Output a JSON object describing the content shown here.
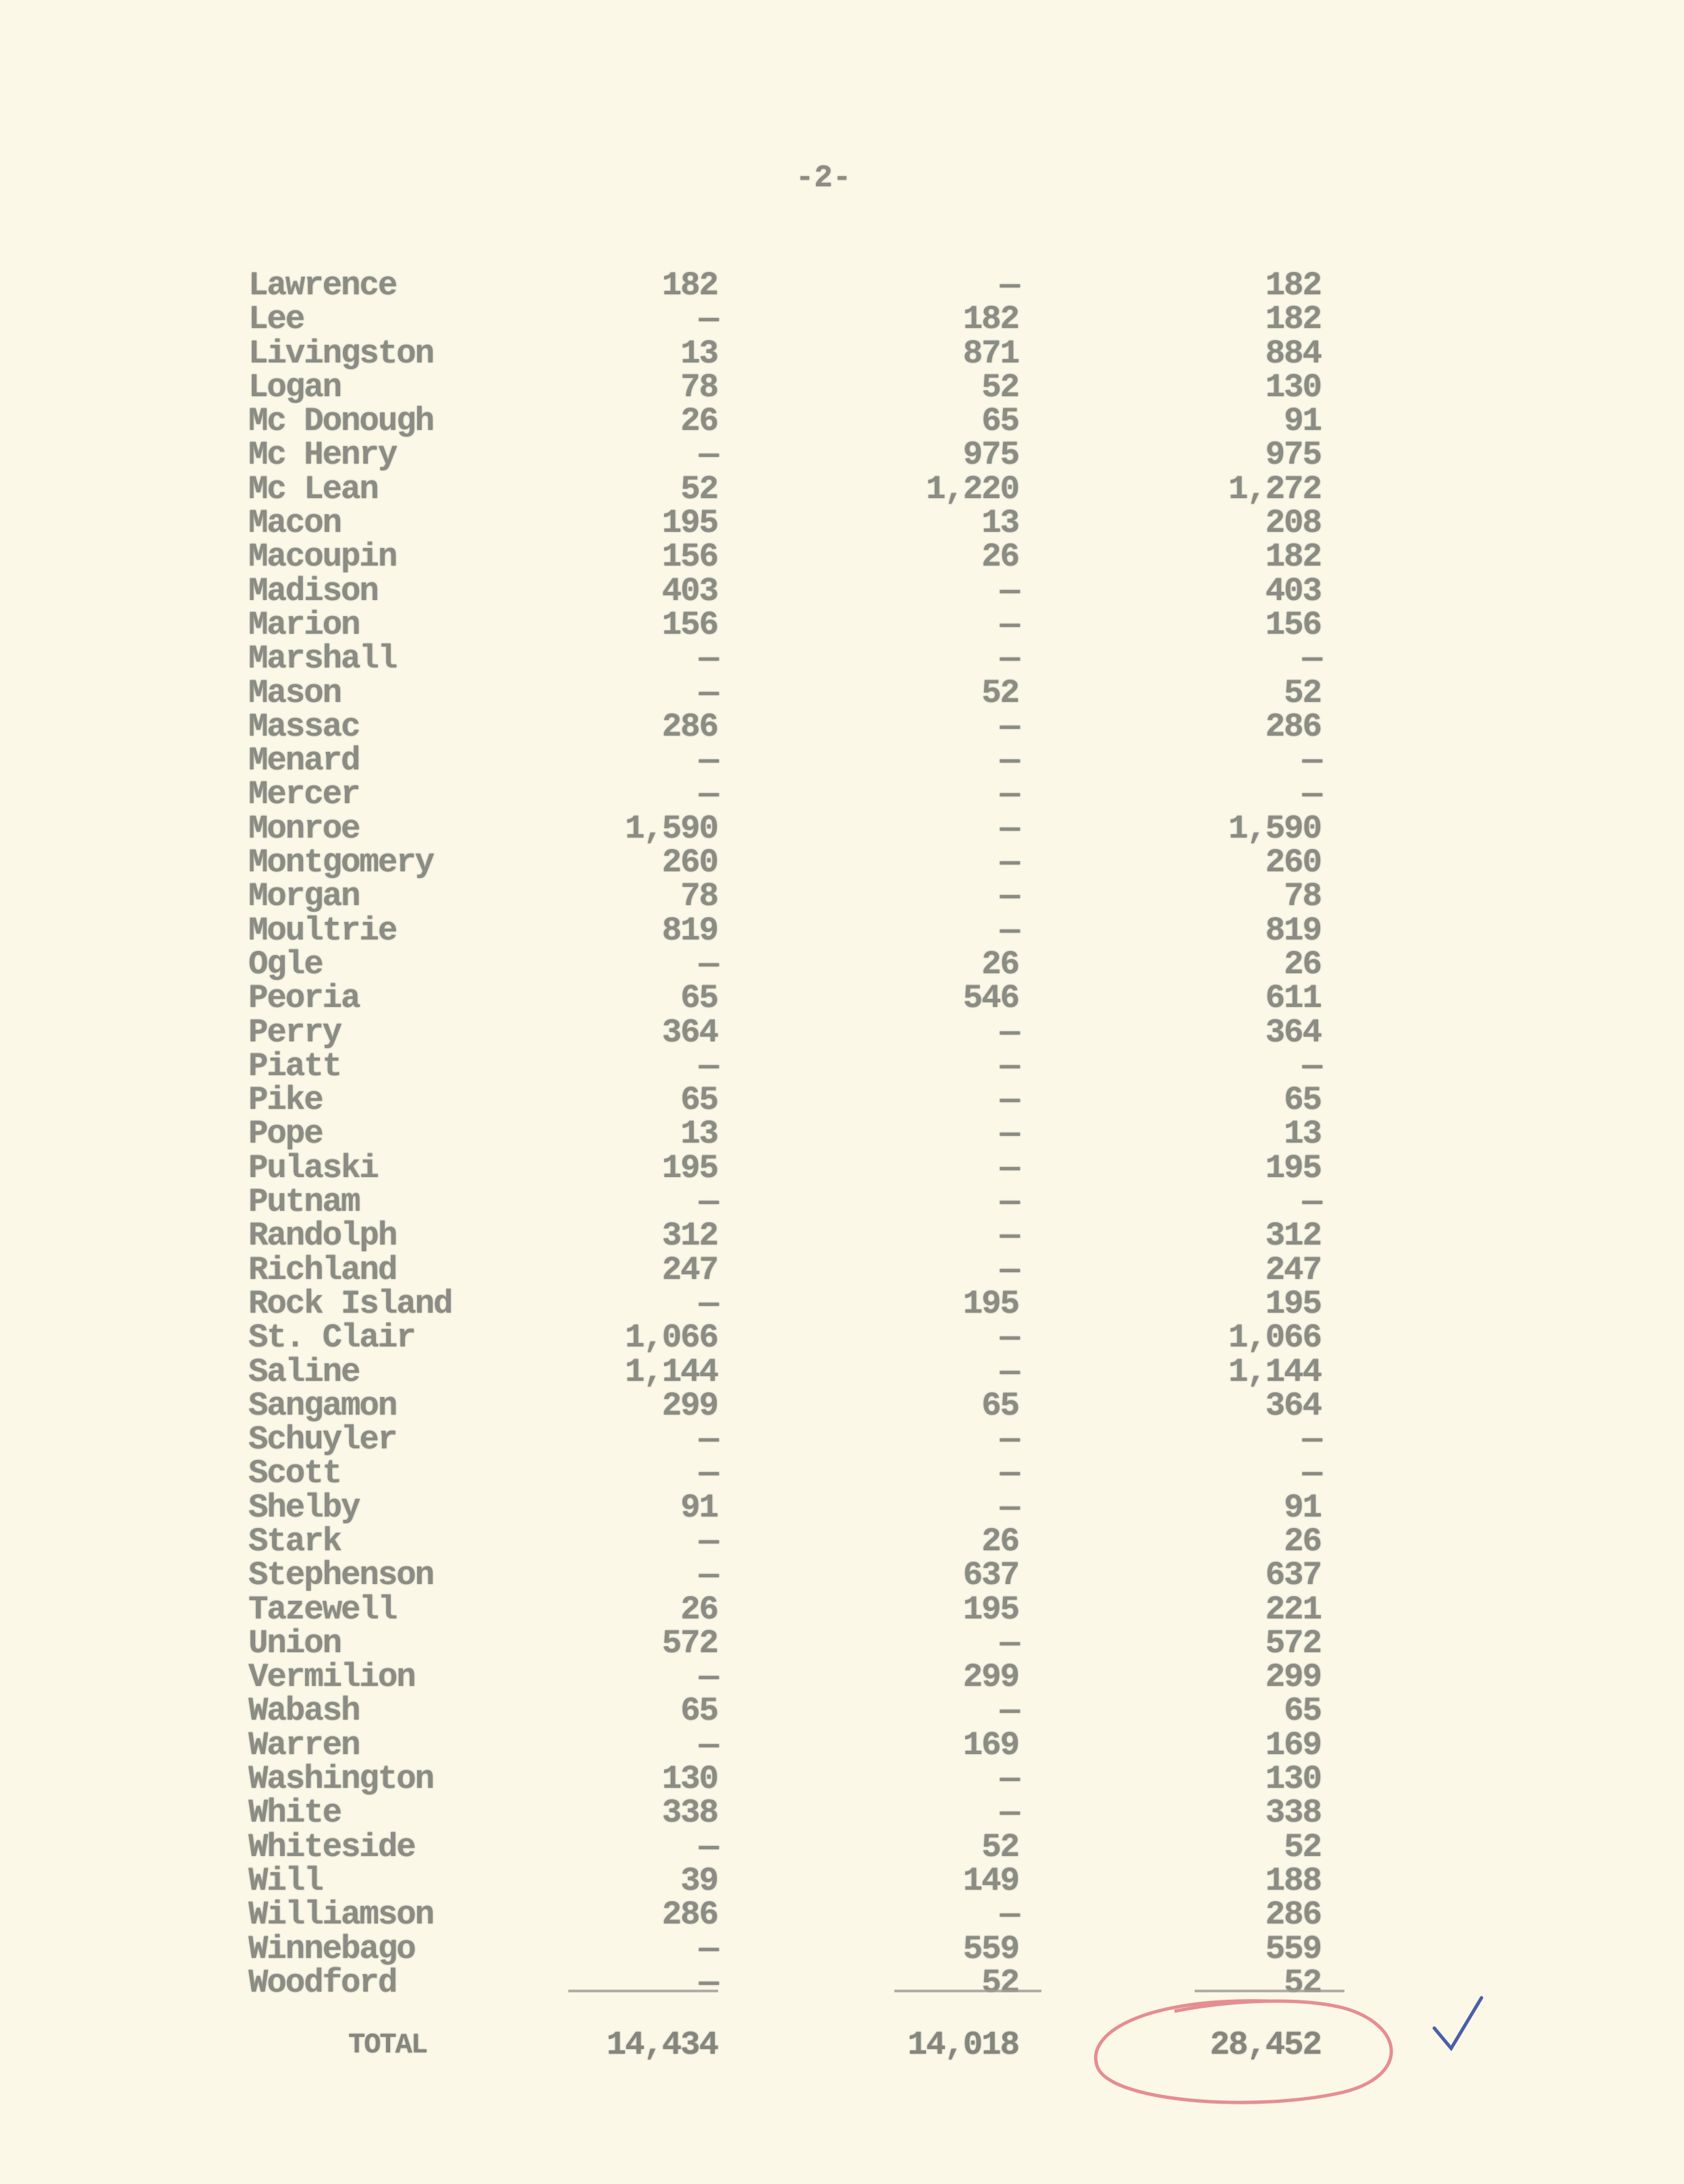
{
  "page_number": "-2-",
  "rows": [
    [
      "Lawrence",
      "182",
      "—",
      "182"
    ],
    [
      "Lee",
      "—",
      "182",
      "182"
    ],
    [
      "Livingston",
      "13",
      "871",
      "884"
    ],
    [
      "Logan",
      "78",
      "52",
      "130"
    ],
    [
      "Mc Donough",
      "26",
      "65",
      "91"
    ],
    [
      "Mc Henry",
      "—",
      "975",
      "975"
    ],
    [
      "Mc Lean",
      "52",
      "1,220",
      "1,272"
    ],
    [
      "Macon",
      "195",
      "13",
      "208"
    ],
    [
      "Macoupin",
      "156",
      "26",
      "182"
    ],
    [
      "Madison",
      "403",
      "—",
      "403"
    ],
    [
      "Marion",
      "156",
      "—",
      "156"
    ],
    [
      "Marshall",
      "—",
      "—",
      "—"
    ],
    [
      "Mason",
      "—",
      "52",
      "52"
    ],
    [
      "Massac",
      "286",
      "—",
      "286"
    ],
    [
      "Menard",
      "—",
      "—",
      "—"
    ],
    [
      "Mercer",
      "—",
      "—",
      "—"
    ],
    [
      "Monroe",
      "1,590",
      "—",
      "1,590"
    ],
    [
      "Montgomery",
      "260",
      "—",
      "260"
    ],
    [
      "Morgan",
      "78",
      "—",
      "78"
    ],
    [
      "Moultrie",
      "819",
      "—",
      "819"
    ],
    [
      "Ogle",
      "—",
      "26",
      "26"
    ],
    [
      "Peoria",
      "65",
      "546",
      "611"
    ],
    [
      "Perry",
      "364",
      "—",
      "364"
    ],
    [
      "Piatt",
      "—",
      "—",
      "—"
    ],
    [
      "Pike",
      "65",
      "—",
      "65"
    ],
    [
      "Pope",
      "13",
      "—",
      "13"
    ],
    [
      "Pulaski",
      "195",
      "—",
      "195"
    ],
    [
      "Putnam",
      "—",
      "—",
      "—"
    ],
    [
      "Randolph",
      "312",
      "—",
      "312"
    ],
    [
      "Richland",
      "247",
      "—",
      "247"
    ],
    [
      "Rock Island",
      "—",
      "195",
      "195"
    ],
    [
      "St. Clair",
      "1,066",
      "—",
      "1,066"
    ],
    [
      "Saline",
      "1,144",
      "—",
      "1,144"
    ],
    [
      "Sangamon",
      "299",
      "65",
      "364"
    ],
    [
      "Schuyler",
      "—",
      "—",
      "—"
    ],
    [
      "Scott",
      "—",
      "—",
      "—"
    ],
    [
      "Shelby",
      "91",
      "—",
      "91"
    ],
    [
      "Stark",
      "—",
      "26",
      "26"
    ],
    [
      "Stephenson",
      "—",
      "637",
      "637"
    ],
    [
      "Tazewell",
      "26",
      "195",
      "221"
    ],
    [
      "Union",
      "572",
      "—",
      "572"
    ],
    [
      "Vermilion",
      "—",
      "299",
      "299"
    ],
    [
      "Wabash",
      "65",
      "—",
      "65"
    ],
    [
      "Warren",
      "—",
      "169",
      "169"
    ],
    [
      "Washington",
      "130",
      "—",
      "130"
    ],
    [
      "White",
      "338",
      "—",
      "338"
    ],
    [
      "Whiteside",
      "—",
      "52",
      "52"
    ],
    [
      "Will",
      "39",
      "149",
      "188"
    ],
    [
      "Williamson",
      "286",
      "—",
      "286"
    ],
    [
      "Winnebago",
      "—",
      "559",
      "559"
    ],
    [
      "Woodford",
      "—",
      "52",
      "52"
    ]
  ],
  "total": {
    "label": "TOTAL",
    "col1": "14,434",
    "col2": "14,018",
    "col3": "28,452"
  },
  "colors": {
    "ink": "#8b8d84",
    "paper": "#fcf8e8",
    "red_pencil": "#e0707a",
    "blue_check": "#4a5fa8"
  }
}
